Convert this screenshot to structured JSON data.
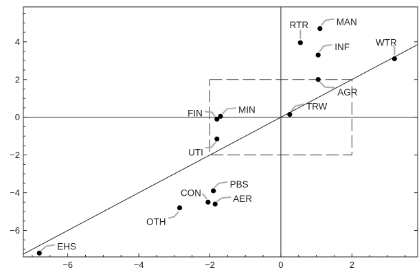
{
  "chart_data": {
    "type": "scatter",
    "title": "",
    "xlabel": "",
    "ylabel": "",
    "xlim": [
      -7.25,
      3.85
    ],
    "ylim": [
      -7.4,
      5.85
    ],
    "x_ticks": [
      -6,
      -4,
      -2,
      0,
      2
    ],
    "y_ticks": [
      -6,
      -4,
      -2,
      0,
      2,
      4
    ],
    "reference_lines": {
      "x_axis_at": 0,
      "y_axis_at": 0,
      "diagonal_slope": 1.0
    },
    "dashed_box": {
      "x": [
        -2,
        2
      ],
      "y": [
        -2,
        2
      ]
    },
    "points": [
      {
        "label": "RTR",
        "x": 0.55,
        "y": 3.95
      },
      {
        "label": "MAN",
        "x": 1.1,
        "y": 4.7
      },
      {
        "label": "INF",
        "x": 1.05,
        "y": 3.3
      },
      {
        "label": "WTR",
        "x": 3.2,
        "y": 3.1
      },
      {
        "label": "AGR",
        "x": 1.05,
        "y": 2.0
      },
      {
        "label": "TRW",
        "x": 0.25,
        "y": 0.15
      },
      {
        "label": "FIN",
        "x": -1.8,
        "y": -0.1
      },
      {
        "label": "MIN",
        "x": -1.7,
        "y": 0.05
      },
      {
        "label": "UTI",
        "x": -1.8,
        "y": -1.15
      },
      {
        "label": "PBS",
        "x": -1.9,
        "y": -3.9
      },
      {
        "label": "CON",
        "x": -2.05,
        "y": -4.5
      },
      {
        "label": "AER",
        "x": -1.85,
        "y": -4.6
      },
      {
        "label": "OTH",
        "x": -2.85,
        "y": -4.8
      },
      {
        "label": "EHS",
        "x": -6.8,
        "y": -7.2
      }
    ]
  }
}
